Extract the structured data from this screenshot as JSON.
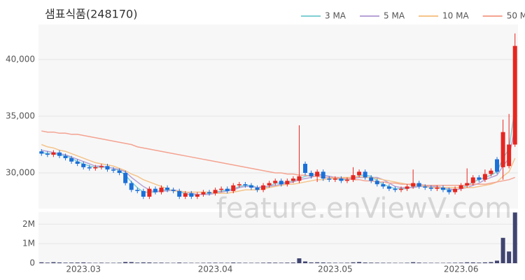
{
  "watermark": "feature.enViewV.com",
  "chart_data": [
    {
      "type": "candlestick",
      "title": "샘표식품(248170)",
      "legend": "top-right",
      "grid": true,
      "up_color": "#e8251f",
      "down_color": "#1a6fd8",
      "categories": [
        null,
        null,
        null,
        null,
        null,
        null,
        null,
        "2023.03",
        null,
        null,
        null,
        null,
        null,
        null,
        null,
        null,
        null,
        null,
        null,
        null,
        null,
        null,
        null,
        null,
        null,
        null,
        null,
        null,
        null,
        "2023.04",
        null,
        null,
        null,
        null,
        null,
        null,
        null,
        null,
        null,
        null,
        null,
        null,
        null,
        null,
        null,
        null,
        null,
        null,
        null,
        "2023.05",
        null,
        null,
        null,
        null,
        null,
        null,
        null,
        null,
        null,
        null,
        null,
        null,
        null,
        null,
        null,
        null,
        null,
        null,
        null,
        null,
        "2023.06",
        null,
        null,
        null,
        null,
        null,
        null,
        null,
        null,
        null
      ],
      "open": [
        31900,
        31700,
        31600,
        31800,
        31500,
        31300,
        31000,
        30800,
        30500,
        30400,
        30500,
        30600,
        30300,
        30200,
        30000,
        29100,
        28500,
        28400,
        27900,
        28600,
        28300,
        28700,
        28500,
        28400,
        27900,
        28200,
        27900,
        28100,
        28300,
        28200,
        28500,
        28600,
        28400,
        28900,
        29000,
        28900,
        28700,
        28500,
        28900,
        29100,
        29300,
        29000,
        29300,
        29300,
        30800,
        30000,
        29700,
        30100,
        29500,
        29400,
        29500,
        29300,
        29400,
        29800,
        30100,
        29600,
        29300,
        29000,
        28800,
        28600,
        28500,
        28600,
        28800,
        29100,
        28800,
        28700,
        28600,
        28700,
        28500,
        28300,
        28600,
        28900,
        29100,
        29600,
        29400,
        29900,
        31200,
        30500,
        30600,
        32500
      ],
      "high": [
        32100,
        31900,
        32000,
        32000,
        31700,
        31500,
        31200,
        31000,
        30700,
        30700,
        30800,
        30800,
        30500,
        30400,
        30200,
        29300,
        28700,
        28600,
        28800,
        28800,
        28900,
        28900,
        28700,
        28600,
        28400,
        28400,
        28300,
        28500,
        28500,
        28700,
        28800,
        28800,
        29100,
        29200,
        29200,
        29100,
        28900,
        29100,
        29300,
        29500,
        29500,
        29500,
        29700,
        34200,
        31000,
        30200,
        30300,
        30300,
        29700,
        29700,
        29700,
        29600,
        30500,
        30300,
        30300,
        29800,
        29500,
        29200,
        29000,
        28800,
        28800,
        29000,
        30300,
        29300,
        29000,
        28900,
        28900,
        28900,
        28700,
        28800,
        29100,
        30400,
        29800,
        29800,
        30300,
        30400,
        31400,
        34700,
        35200,
        42300
      ],
      "low": [
        31500,
        31400,
        31400,
        31300,
        31100,
        30800,
        30600,
        30300,
        30200,
        30200,
        30300,
        30100,
        30000,
        29800,
        28900,
        28300,
        28200,
        27700,
        27700,
        28100,
        28100,
        28300,
        28200,
        27700,
        27700,
        27700,
        27700,
        27900,
        28000,
        28000,
        28300,
        28200,
        28200,
        28700,
        28700,
        28500,
        28300,
        28300,
        28700,
        28900,
        28800,
        28800,
        29100,
        29100,
        29800,
        29500,
        29200,
        29300,
        29200,
        29200,
        29100,
        29100,
        29200,
        29600,
        29400,
        29100,
        28800,
        28600,
        28400,
        28300,
        28300,
        28400,
        28600,
        28600,
        28500,
        28400,
        28400,
        28300,
        28100,
        28100,
        28400,
        28700,
        28900,
        29200,
        29200,
        29700,
        29900,
        29400,
        30400,
        32300
      ],
      "close": [
        31700,
        31600,
        31800,
        31500,
        31300,
        31000,
        30800,
        30500,
        30400,
        30500,
        30600,
        30300,
        30200,
        30000,
        29100,
        28500,
        28400,
        27900,
        28600,
        28300,
        28700,
        28500,
        28400,
        27900,
        28200,
        27900,
        28100,
        28300,
        28200,
        28500,
        28600,
        28400,
        28900,
        29000,
        28900,
        28700,
        28500,
        28900,
        29100,
        29300,
        29000,
        29300,
        29500,
        29700,
        30000,
        29700,
        30100,
        29500,
        29400,
        29500,
        29300,
        29400,
        29800,
        30100,
        29600,
        29300,
        29000,
        28800,
        28600,
        28500,
        28600,
        28800,
        29100,
        28800,
        28700,
        28600,
        28700,
        28500,
        28300,
        28600,
        28900,
        29100,
        29600,
        29400,
        29900,
        30200,
        30100,
        33600,
        32500,
        41200
      ],
      "series": [
        {
          "name": "3 MA",
          "color": "#7fcfd4",
          "values": [
            31800,
            31700,
            31700,
            31600,
            31500,
            31300,
            31000,
            30800,
            30600,
            30500,
            30500,
            30500,
            30400,
            30200,
            29800,
            29200,
            28700,
            28300,
            28300,
            28300,
            28500,
            28500,
            28500,
            28300,
            28200,
            28000,
            28100,
            28100,
            28200,
            28300,
            28400,
            28500,
            28600,
            28800,
            28900,
            28900,
            28700,
            28700,
            28800,
            29100,
            29100,
            29200,
            29300,
            29500,
            29700,
            29800,
            29900,
            29800,
            29700,
            29500,
            29400,
            29400,
            29500,
            29800,
            29800,
            29700,
            29300,
            29000,
            28800,
            28600,
            28600,
            28600,
            28800,
            28900,
            28900,
            28700,
            28700,
            28600,
            28500,
            28500,
            28600,
            28900,
            29200,
            29400,
            29600,
            29800,
            30100,
            31300,
            32100,
            35800
          ]
        },
        {
          "name": "5 MA",
          "color": "#b7a2d6",
          "values": [
            32000,
            31900,
            31800,
            31700,
            31600,
            31400,
            31200,
            31000,
            30800,
            30600,
            30600,
            30500,
            30400,
            30300,
            30100,
            29600,
            29200,
            28800,
            28500,
            28300,
            28400,
            28400,
            28500,
            28400,
            28300,
            28200,
            28100,
            28100,
            28100,
            28200,
            28300,
            28400,
            28500,
            28700,
            28800,
            28800,
            28700,
            28800,
            28800,
            28900,
            29000,
            29100,
            29200,
            29400,
            29500,
            29600,
            29800,
            29800,
            29700,
            29600,
            29600,
            29500,
            29500,
            29600,
            29600,
            29600,
            29600,
            29400,
            29100,
            28800,
            28700,
            28700,
            28700,
            28800,
            28800,
            28800,
            28800,
            28700,
            28600,
            28500,
            28600,
            28700,
            28900,
            29100,
            29400,
            29600,
            29800,
            30600,
            31300,
            34100
          ]
        },
        {
          "name": "10 MA",
          "color": "#f5c48a",
          "values": [
            32500,
            32300,
            32200,
            32000,
            31900,
            31700,
            31500,
            31300,
            31100,
            30900,
            30800,
            30700,
            30600,
            30400,
            30200,
            29900,
            29700,
            29400,
            29200,
            29000,
            28800,
            28600,
            28400,
            28400,
            28300,
            28300,
            28300,
            28300,
            28300,
            28200,
            28200,
            28200,
            28300,
            28400,
            28500,
            28500,
            28500,
            28600,
            28700,
            28800,
            28900,
            29000,
            29000,
            29100,
            29200,
            29300,
            29400,
            29400,
            29500,
            29500,
            29600,
            29600,
            29600,
            29700,
            29600,
            29600,
            29500,
            29400,
            29300,
            29200,
            29100,
            29000,
            28900,
            28900,
            28800,
            28700,
            28700,
            28700,
            28700,
            28700,
            28700,
            28700,
            28700,
            28800,
            28900,
            29000,
            29200,
            29700,
            30100,
            31300
          ]
        },
        {
          "name": "50 MA",
          "color": "#f4a391",
          "values": [
            33700,
            33600,
            33600,
            33500,
            33500,
            33400,
            33400,
            33300,
            33200,
            33100,
            33000,
            32900,
            32800,
            32700,
            32600,
            32500,
            32300,
            32200,
            32100,
            32000,
            31900,
            31800,
            31700,
            31600,
            31500,
            31400,
            31300,
            31200,
            31100,
            31000,
            30900,
            30800,
            30700,
            30600,
            30500,
            30400,
            30300,
            30200,
            30100,
            30000,
            30000,
            29900,
            29900,
            29800,
            29800,
            29700,
            29700,
            29600,
            29600,
            29600,
            29500,
            29500,
            29400,
            29400,
            29300,
            29300,
            29200,
            29200,
            29100,
            29100,
            29000,
            29000,
            29000,
            29000,
            28900,
            28900,
            28900,
            28900,
            28900,
            28900,
            28900,
            28900,
            29000,
            29000,
            29000,
            29100,
            29200,
            29300,
            29400,
            29600
          ]
        }
      ],
      "ylim": [
        26850,
        43090
      ],
      "yticks": [
        {
          "value": 30000,
          "label": "30,000"
        },
        {
          "value": 35000,
          "label": "35,000"
        },
        {
          "value": 40000,
          "label": "40,000"
        }
      ]
    },
    {
      "type": "bar",
      "color": "#3f4470",
      "grid": true,
      "values": [
        45000,
        30000,
        52000,
        38000,
        27000,
        31000,
        35000,
        40000,
        22000,
        18000,
        25000,
        20000,
        19000,
        24000,
        60000,
        55000,
        30000,
        42000,
        38000,
        25000,
        28000,
        21000,
        18000,
        33000,
        20000,
        19000,
        17000,
        21000,
        23000,
        26000,
        22000,
        20000,
        35000,
        24000,
        21000,
        19000,
        20000,
        26000,
        31000,
        28000,
        24000,
        29000,
        35000,
        250000,
        90000,
        40000,
        45000,
        38000,
        25000,
        22000,
        20000,
        24000,
        45000,
        60000,
        35000,
        28000,
        25000,
        22000,
        20000,
        18000,
        17000,
        22000,
        50000,
        30000,
        20000,
        19000,
        18000,
        17000,
        20000,
        24000,
        28000,
        45000,
        40000,
        30000,
        42000,
        55000,
        130000,
        1300000,
        600000,
        2600000
      ],
      "ylim": [
        0,
        2620000
      ],
      "yticks": [
        0,
        {
          "value": 1000000,
          "label": "1M"
        },
        {
          "value": 2000000,
          "label": "2M"
        }
      ]
    }
  ]
}
